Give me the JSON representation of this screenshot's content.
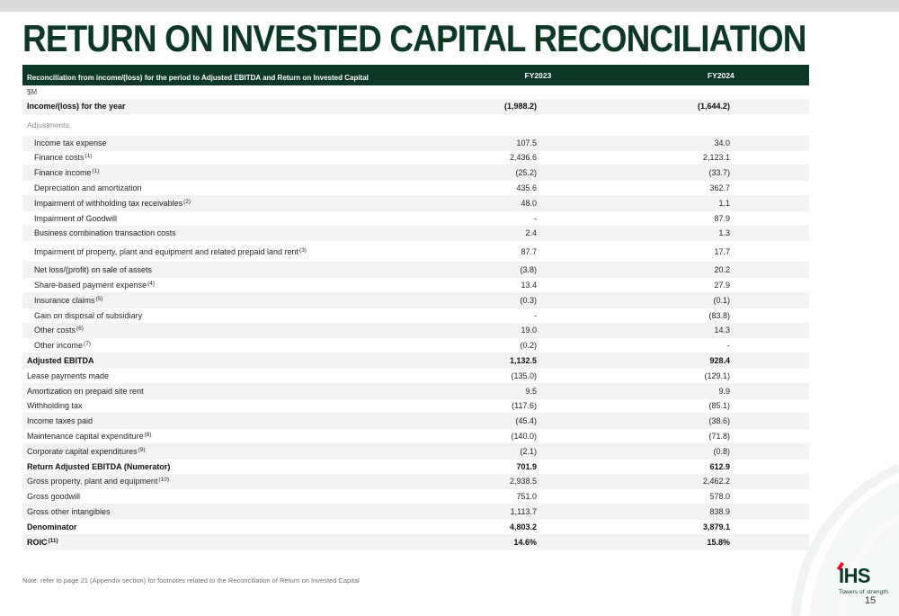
{
  "slide": {
    "title": "RETURN ON INVESTED CAPITAL RECONCILIATION",
    "note": "Note: refer to page 21 (Appendix section) for footnotes related to the Reconciliation of Return on Invested Capital",
    "page_number": "15"
  },
  "logo": {
    "text": "IHS",
    "tagline": "Towers of strength"
  },
  "colors": {
    "brand_green": "#0d3826",
    "accent_red": "#e8112d",
    "row_shade": "#f2f2f2",
    "top_strip": "#d9d9d9"
  },
  "table": {
    "header": {
      "label": "Reconciliation from income/(loss) for the period to Adjusted EBITDA and Return on Invested Capital",
      "col1": "FY2023",
      "col2": "FY2024"
    },
    "rows": [
      {
        "label": "$M",
        "unit": true
      },
      {
        "label": "Income/(loss) for the year",
        "fy2023": "(1,988.2)",
        "fy2024": "(1,644.2)",
        "bold": true,
        "shaded": true
      },
      {
        "label": "Adjustments:",
        "muted": true,
        "tall": true
      },
      {
        "label": "Income tax expense",
        "fy2023": "107.5",
        "fy2024": "34.0",
        "shaded": true,
        "indent": true
      },
      {
        "label": "Finance costs",
        "sup": "(1)",
        "fy2023": "2,436.6",
        "fy2024": "2,123.1",
        "indent": true
      },
      {
        "label": "Finance income",
        "sup": "(1)",
        "fy2023": "(25.2)",
        "fy2024": "(33.7)",
        "shaded": true,
        "indent": true
      },
      {
        "label": "Depreciation and amortization",
        "fy2023": "435.6",
        "fy2024": "362.7",
        "indent": true
      },
      {
        "label": "Impairment of withholding tax receivables",
        "sup": "(2)",
        "fy2023": "48.0",
        "fy2024": "1.1",
        "shaded": true,
        "indent": true
      },
      {
        "label": "Impairment of Goodwill",
        "fy2023": "-",
        "fy2024": "87.9",
        "indent": true
      },
      {
        "label": "Business combination transaction costs",
        "fy2023": "2.4",
        "fy2024": "1.3",
        "shaded": true,
        "indent": true
      },
      {
        "label": "Impairment of property, plant and equipment and related prepaid land rent",
        "sup": "(3)",
        "fy2023": "87.7",
        "fy2024": "17.7",
        "indent": true,
        "tall": true
      },
      {
        "label": "Net loss/(profit) on sale of assets",
        "fy2023": "(3.8)",
        "fy2024": "20.2",
        "shaded": true,
        "indent": true
      },
      {
        "label": "Share-based payment expense",
        "sup": "(4)",
        "fy2023": "13.4",
        "fy2024": "27.9",
        "indent": true
      },
      {
        "label": "Insurance claims",
        "sup": "(5)",
        "fy2023": "(0.3)",
        "fy2024": "(0.1)",
        "shaded": true,
        "indent": true
      },
      {
        "label": "Gain on disposal of subsidiary",
        "fy2023": "-",
        "fy2024": "(83.8)",
        "indent": true
      },
      {
        "label": "Other costs",
        "sup": "(6)",
        "fy2023": "19.0",
        "fy2024": "14.3",
        "shaded": true,
        "indent": true
      },
      {
        "label": "Other income",
        "sup": "(7)",
        "fy2023": "(0.2)",
        "fy2024": "-",
        "indent": true
      },
      {
        "label": "Adjusted EBITDA",
        "fy2023": "1,132.5",
        "fy2024": "928.4",
        "bold": true,
        "shaded": true
      },
      {
        "label": "Lease payments made",
        "fy2023": "(135.0)",
        "fy2024": "(129.1)"
      },
      {
        "label": "Amortization on prepaid site rent",
        "fy2023": "9.5",
        "fy2024": "9.9",
        "shaded": true
      },
      {
        "label": "Withholding tax",
        "fy2023": "(117.6)",
        "fy2024": "(85.1)"
      },
      {
        "label": "Income taxes paid",
        "fy2023": "(45.4)",
        "fy2024": "(38.6)",
        "shaded": true
      },
      {
        "label": "Maintenance capital expenditure",
        "sup": "(8)",
        "fy2023": "(140.0)",
        "fy2024": "(71.8)"
      },
      {
        "label": "Corporate capital expenditures",
        "sup": "(9)",
        "fy2023": "(2.1)",
        "fy2024": "(0.8)",
        "shaded": true
      },
      {
        "label": "Return Adjusted EBITDA (Numerator)",
        "fy2023": "701.9",
        "fy2024": "612.9",
        "bold": true
      },
      {
        "label": "Gross property, plant and equipment",
        "sup": "(10)",
        "fy2023": "2,938.5",
        "fy2024": "2,462.2",
        "shaded": true
      },
      {
        "label": "Gross goodwill",
        "fy2023": "751.0",
        "fy2024": "578.0"
      },
      {
        "label": "Gross other intangibles",
        "fy2023": "1,113.7",
        "fy2024": "838.9",
        "shaded": true
      },
      {
        "label": "Denominator",
        "fy2023": "4,803.2",
        "fy2024": "3,879.1",
        "bold": true
      },
      {
        "label": "ROIC",
        "sup": "(11)",
        "fy2023": "14.6%",
        "fy2024": "15.8%",
        "bold": true,
        "shaded": true
      }
    ]
  }
}
